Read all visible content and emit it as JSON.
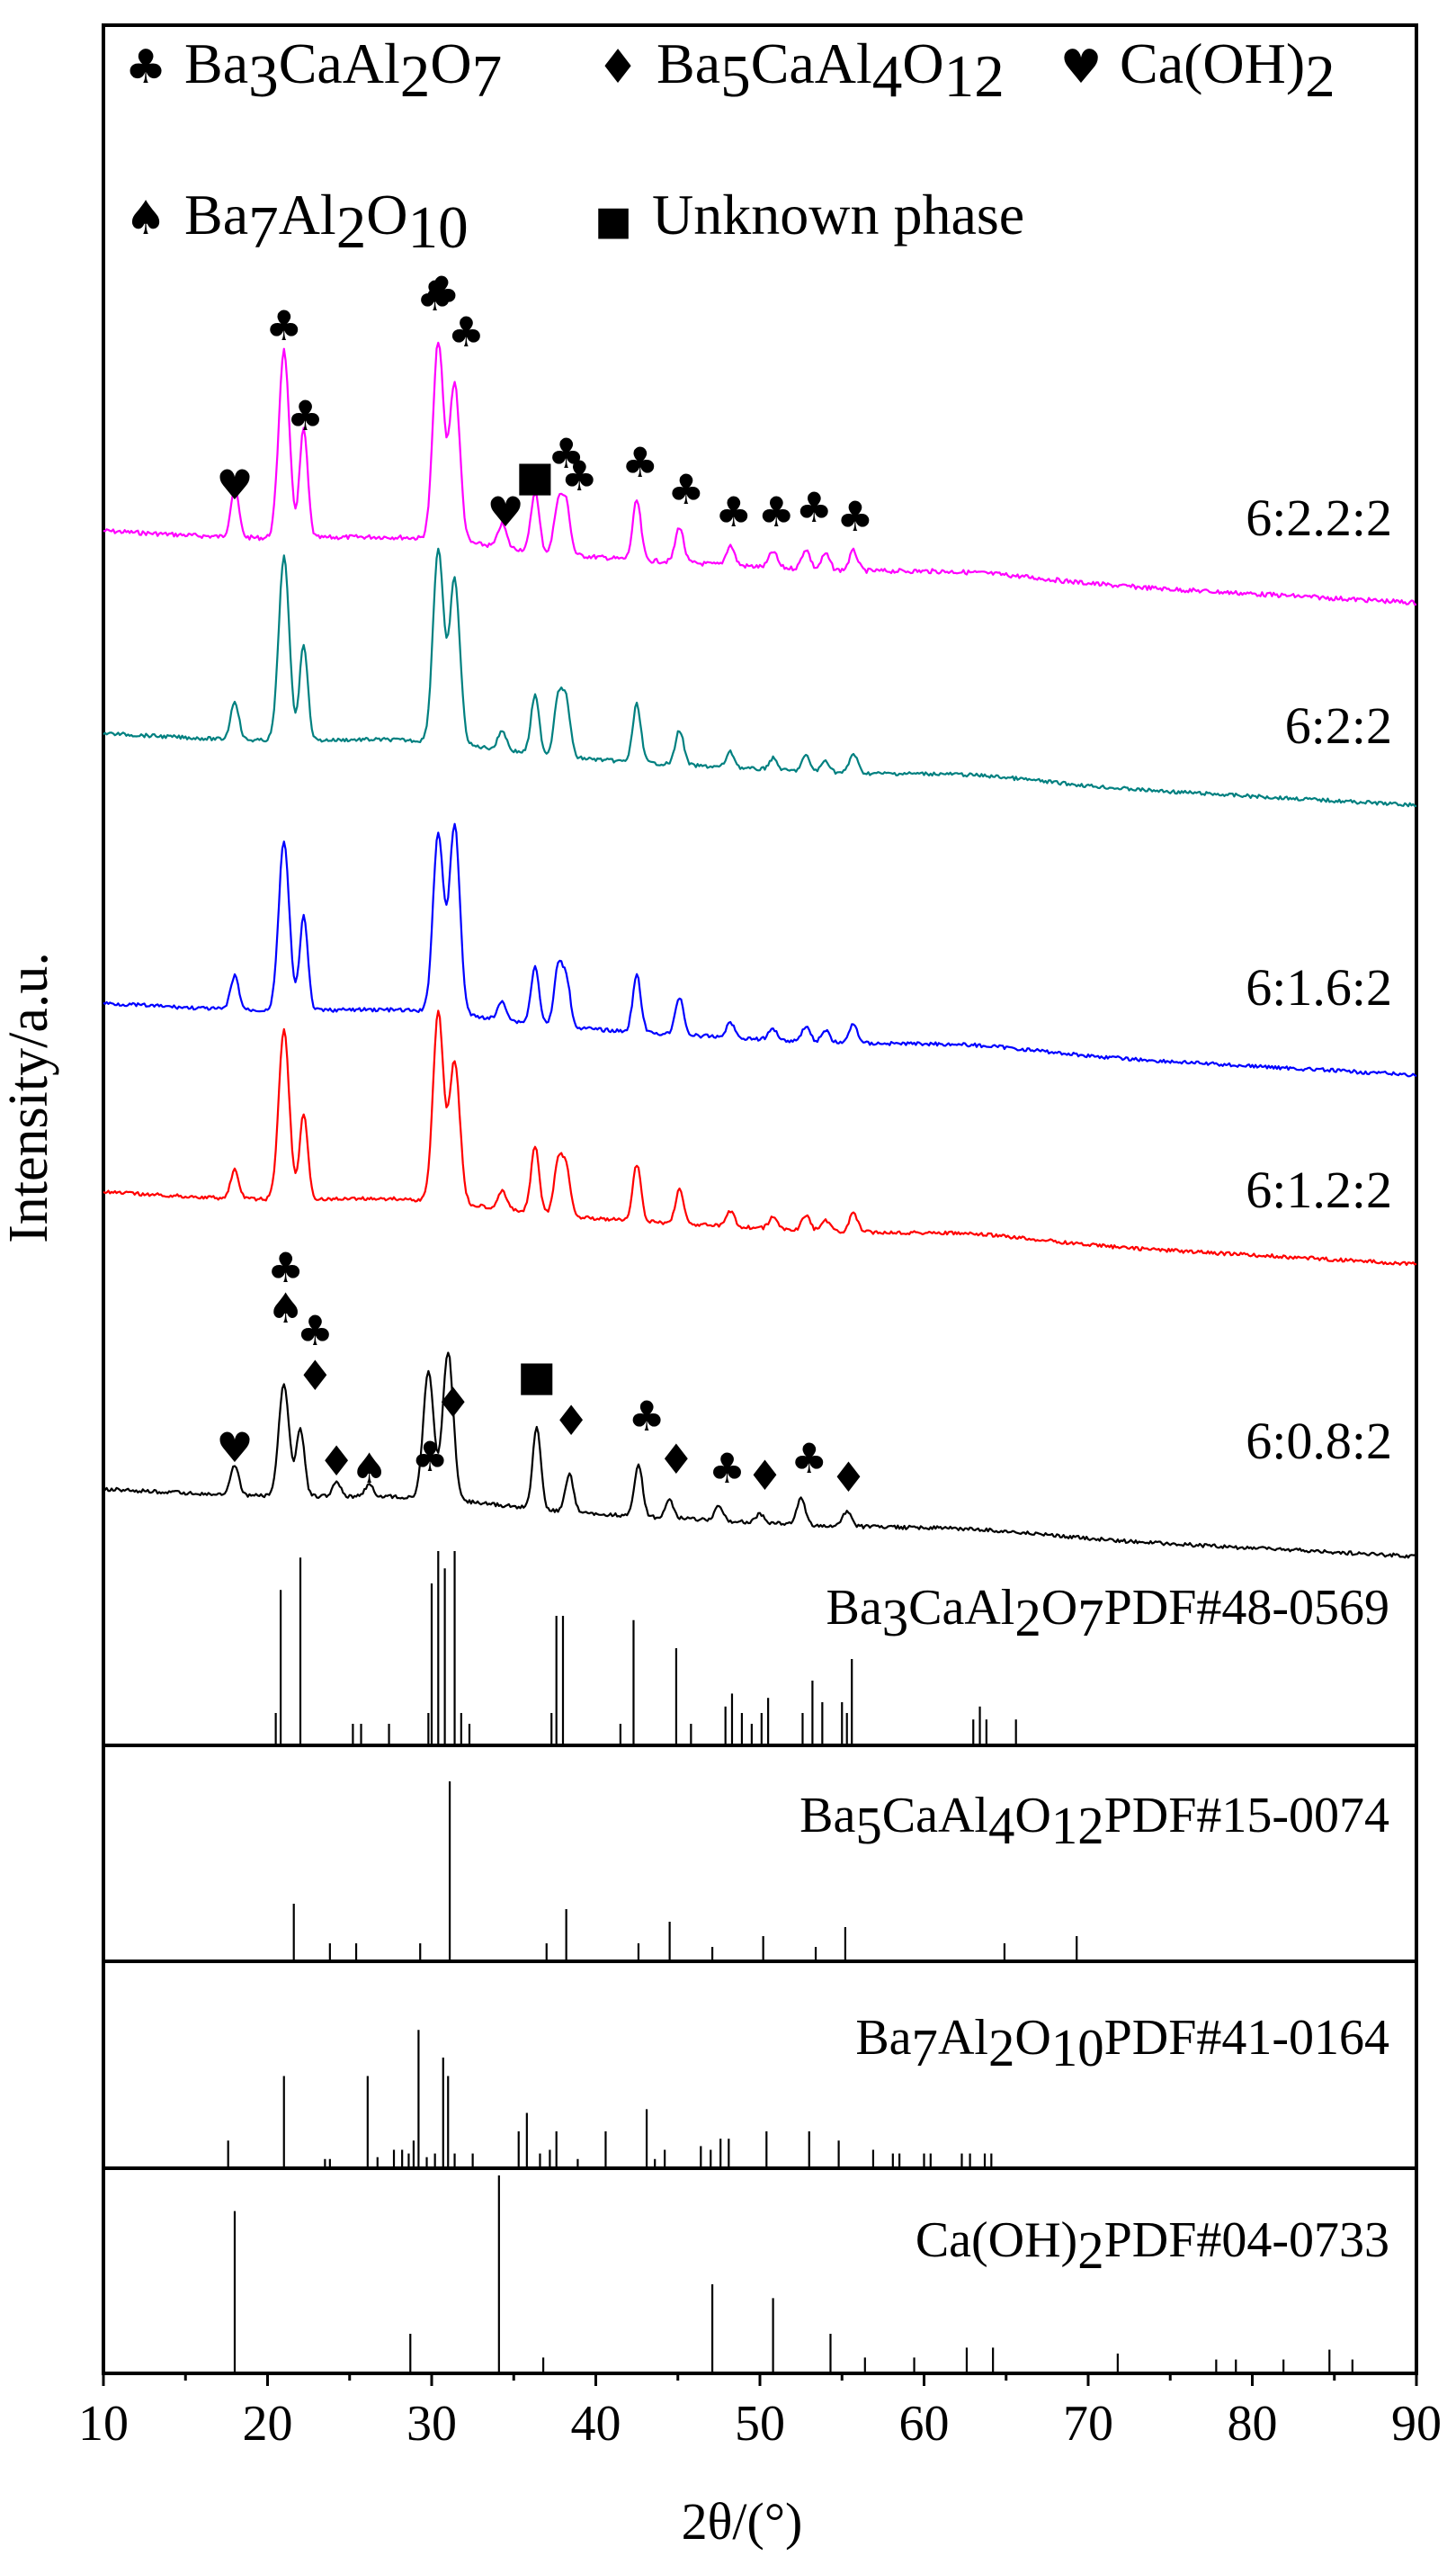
{
  "chart_data": {
    "type": "line",
    "xlabel": "2θ/(°)",
    "ylabel": "Intensity/a.u.",
    "xlim": [
      10,
      90
    ],
    "xticks": [
      10,
      20,
      30,
      40,
      50,
      60,
      70,
      80,
      90
    ],
    "legend": [
      {
        "symbol": "♣",
        "name": "Ba3CaAl2O7"
      },
      {
        "symbol": "♦",
        "name": "Ba5CaAl4O12"
      },
      {
        "symbol": "♥",
        "name": "Ca(OH)2"
      },
      {
        "symbol": "♠",
        "name": "Ba7Al2O10"
      },
      {
        "symbol": "■",
        "name": "Unknown phase"
      }
    ],
    "series": [
      {
        "name": "6:2.2:2",
        "color": "#ff00ff",
        "peaks": [
          [
            18,
            0.25
          ],
          [
            21,
            0.95
          ],
          [
            22.2,
            0.55
          ],
          [
            30.4,
            1.0
          ],
          [
            31.4,
            0.8
          ],
          [
            34.3,
            0.12
          ],
          [
            36.3,
            0.3
          ],
          [
            37.7,
            0.25
          ],
          [
            38.2,
            0.25
          ],
          [
            42.5,
            0.3
          ],
          [
            45.1,
            0.18
          ],
          [
            48.2,
            0.1
          ],
          [
            50.8,
            0.08
          ],
          [
            52.8,
            0.1
          ],
          [
            54,
            0.08
          ],
          [
            55.7,
            0.1
          ]
        ],
        "markers": [
          {
            "x": 18,
            "sym": "♥"
          },
          {
            "x": 21,
            "sym": "♣"
          },
          {
            "x": 22.3,
            "sym": "♣"
          },
          {
            "x": 30.2,
            "sym": "♣"
          },
          {
            "x": 30.6,
            "sym": "♣"
          },
          {
            "x": 32.1,
            "sym": "♣"
          },
          {
            "x": 34.5,
            "sym": "♥"
          },
          {
            "x": 36.3,
            "sym": "■"
          },
          {
            "x": 38.2,
            "sym": "♣"
          },
          {
            "x": 39.0,
            "sym": "♣"
          },
          {
            "x": 42.7,
            "sym": "♣"
          },
          {
            "x": 45.5,
            "sym": "♣"
          },
          {
            "x": 48.4,
            "sym": "♣"
          },
          {
            "x": 51,
            "sym": "♣"
          },
          {
            "x": 53.3,
            "sym": "♣"
          },
          {
            "x": 55.8,
            "sym": "♣"
          }
        ]
      },
      {
        "name": "6:2:2",
        "color": "#008080",
        "peaks": [
          [
            18,
            0.2
          ],
          [
            21,
            0.95
          ],
          [
            22.2,
            0.5
          ],
          [
            30.4,
            1.0
          ],
          [
            31.4,
            0.85
          ],
          [
            34.3,
            0.1
          ],
          [
            36.3,
            0.3
          ],
          [
            37.7,
            0.3
          ],
          [
            38.2,
            0.28
          ],
          [
            42.5,
            0.3
          ],
          [
            45.1,
            0.18
          ],
          [
            48.2,
            0.08
          ],
          [
            50.8,
            0.06
          ],
          [
            52.8,
            0.08
          ],
          [
            54,
            0.06
          ],
          [
            55.7,
            0.1
          ]
        ],
        "markers": []
      },
      {
        "name": "6:1.6:2",
        "color": "#0000ff",
        "peaks": [
          [
            18,
            0.18
          ],
          [
            21,
            0.9
          ],
          [
            22.2,
            0.5
          ],
          [
            30.4,
            0.95
          ],
          [
            31.4,
            1.0
          ],
          [
            34.3,
            0.1
          ],
          [
            36.3,
            0.3
          ],
          [
            37.7,
            0.3
          ],
          [
            38.2,
            0.25
          ],
          [
            42.5,
            0.3
          ],
          [
            45.1,
            0.2
          ],
          [
            48.2,
            0.08
          ],
          [
            50.8,
            0.06
          ],
          [
            52.8,
            0.08
          ],
          [
            54,
            0.06
          ],
          [
            55.7,
            0.1
          ]
        ],
        "markers": []
      },
      {
        "name": "6:1.2:2",
        "color": "#ff0000",
        "peaks": [
          [
            18,
            0.15
          ],
          [
            21,
            0.9
          ],
          [
            22.2,
            0.45
          ],
          [
            30.4,
            1.0
          ],
          [
            31.4,
            0.75
          ],
          [
            34.3,
            0.1
          ],
          [
            36.3,
            0.35
          ],
          [
            37.7,
            0.28
          ],
          [
            38.2,
            0.25
          ],
          [
            42.5,
            0.3
          ],
          [
            45.1,
            0.18
          ],
          [
            48.2,
            0.08
          ],
          [
            50.8,
            0.06
          ],
          [
            52.8,
            0.08
          ],
          [
            54,
            0.06
          ],
          [
            55.7,
            0.1
          ]
        ],
        "markers": []
      },
      {
        "name": "6:0.8:2",
        "color": "#000000",
        "peaks": [
          [
            18,
            0.2
          ],
          [
            21,
            0.75
          ],
          [
            22,
            0.45
          ],
          [
            24.2,
            0.1
          ],
          [
            26.2,
            0.08
          ],
          [
            29.8,
            0.85
          ],
          [
            31,
            1.0
          ],
          [
            36.4,
            0.55
          ],
          [
            38.4,
            0.25
          ],
          [
            42.6,
            0.35
          ],
          [
            44.5,
            0.12
          ],
          [
            47.5,
            0.1
          ],
          [
            50,
            0.06
          ],
          [
            52.5,
            0.18
          ],
          [
            55.3,
            0.1
          ]
        ],
        "markers": [
          {
            "x": 18,
            "sym": "♥"
          },
          {
            "x": 21.1,
            "sym": "♣"
          },
          {
            "x": 21.1,
            "sym": "♠"
          },
          {
            "x": 22.9,
            "sym": "♣"
          },
          {
            "x": 22.9,
            "sym": "♦"
          },
          {
            "x": 24.2,
            "sym": "♦"
          },
          {
            "x": 26.2,
            "sym": "♠"
          },
          {
            "x": 29.9,
            "sym": "♣"
          },
          {
            "x": 31.3,
            "sym": "♦"
          },
          {
            "x": 36.4,
            "sym": "■"
          },
          {
            "x": 38.5,
            "sym": "♦"
          },
          {
            "x": 43.1,
            "sym": "♣"
          },
          {
            "x": 44.9,
            "sym": "♦"
          },
          {
            "x": 48,
            "sym": "♣"
          },
          {
            "x": 50.3,
            "sym": "♦"
          },
          {
            "x": 53,
            "sym": "♣"
          },
          {
            "x": 55.4,
            "sym": "♦"
          }
        ]
      }
    ],
    "reference_patterns": [
      {
        "label": "Ba3CaAl2O7PDF#48-0569",
        "lines": [
          [
            20.5,
            0.15
          ],
          [
            20.8,
            0.72
          ],
          [
            22,
            0.87
          ],
          [
            25.2,
            0.1
          ],
          [
            25.7,
            0.1
          ],
          [
            27.4,
            0.1
          ],
          [
            29.8,
            0.15
          ],
          [
            30,
            0.75
          ],
          [
            30.4,
            0.9
          ],
          [
            30.8,
            0.82
          ],
          [
            31.4,
            0.9
          ],
          [
            31.8,
            0.15
          ],
          [
            32.3,
            0.1
          ],
          [
            37.3,
            0.15
          ],
          [
            37.6,
            0.6
          ],
          [
            38,
            0.6
          ],
          [
            41.5,
            0.1
          ],
          [
            42.3,
            0.58
          ],
          [
            44.9,
            0.45
          ],
          [
            45.8,
            0.1
          ],
          [
            47.9,
            0.18
          ],
          [
            48.3,
            0.24
          ],
          [
            48.9,
            0.15
          ],
          [
            49.5,
            0.1
          ],
          [
            50.1,
            0.15
          ],
          [
            50.5,
            0.22
          ],
          [
            52.6,
            0.15
          ],
          [
            53.2,
            0.3
          ],
          [
            53.8,
            0.2
          ],
          [
            55,
            0.2
          ],
          [
            55.3,
            0.15
          ],
          [
            55.6,
            0.4
          ],
          [
            63,
            0.12
          ],
          [
            63.4,
            0.18
          ],
          [
            63.8,
            0.12
          ],
          [
            65.6,
            0.12
          ]
        ]
      },
      {
        "label": "Ba5CaAl4O12PDF#15-0074",
        "lines": [
          [
            21.6,
            0.32
          ],
          [
            23.8,
            0.1
          ],
          [
            25.4,
            0.1
          ],
          [
            29.3,
            0.1
          ],
          [
            31.1,
            1.0
          ],
          [
            37,
            0.1
          ],
          [
            38.2,
            0.29
          ],
          [
            42.6,
            0.1
          ],
          [
            44.5,
            0.22
          ],
          [
            47.1,
            0.08
          ],
          [
            50.2,
            0.14
          ],
          [
            53.4,
            0.08
          ],
          [
            55.2,
            0.19
          ],
          [
            64.9,
            0.1
          ],
          [
            69.3,
            0.14
          ]
        ]
      },
      {
        "label": "Ba7Al2O10PDF#41-0164",
        "lines": [
          [
            17.6,
            0.15
          ],
          [
            21,
            0.5
          ],
          [
            23.5,
            0.05
          ],
          [
            23.8,
            0.05
          ],
          [
            26.1,
            0.5
          ],
          [
            26.7,
            0.06
          ],
          [
            27.7,
            0.1
          ],
          [
            28.2,
            0.1
          ],
          [
            28.6,
            0.08
          ],
          [
            28.9,
            0.15
          ],
          [
            29.2,
            0.75
          ],
          [
            29.7,
            0.06
          ],
          [
            30.2,
            0.08
          ],
          [
            30.7,
            0.6
          ],
          [
            31,
            0.5
          ],
          [
            31.4,
            0.08
          ],
          [
            32.5,
            0.08
          ],
          [
            35.3,
            0.2
          ],
          [
            35.8,
            0.3
          ],
          [
            36.6,
            0.08
          ],
          [
            37.2,
            0.1
          ],
          [
            37.6,
            0.2
          ],
          [
            38.9,
            0.05
          ],
          [
            40.6,
            0.2
          ],
          [
            43.1,
            0.32
          ],
          [
            43.6,
            0.05
          ],
          [
            44.2,
            0.1
          ],
          [
            46.4,
            0.12
          ],
          [
            47,
            0.1
          ],
          [
            47.6,
            0.16
          ],
          [
            48.1,
            0.16
          ],
          [
            50.4,
            0.2
          ],
          [
            53,
            0.2
          ],
          [
            54.8,
            0.15
          ],
          [
            56.9,
            0.1
          ],
          [
            58.1,
            0.08
          ],
          [
            58.5,
            0.08
          ],
          [
            60,
            0.08
          ],
          [
            60.4,
            0.08
          ],
          [
            62.3,
            0.08
          ],
          [
            62.8,
            0.08
          ],
          [
            63.7,
            0.08
          ],
          [
            64.1,
            0.08
          ]
        ]
      },
      {
        "label": "Ca(OH)2PDF#04-0733",
        "lines": [
          [
            18,
            0.82
          ],
          [
            28.7,
            0.2
          ],
          [
            34.1,
            1.0
          ],
          [
            36.8,
            0.08
          ],
          [
            47.1,
            0.45
          ],
          [
            50.8,
            0.38
          ],
          [
            54.3,
            0.2
          ],
          [
            56.4,
            0.08
          ],
          [
            59.4,
            0.08
          ],
          [
            62.6,
            0.13
          ],
          [
            64.2,
            0.13
          ],
          [
            71.8,
            0.1
          ],
          [
            77.8,
            0.07
          ],
          [
            79,
            0.07
          ],
          [
            81.9,
            0.07
          ],
          [
            84.7,
            0.12
          ],
          [
            86.1,
            0.07
          ]
        ]
      }
    ]
  }
}
